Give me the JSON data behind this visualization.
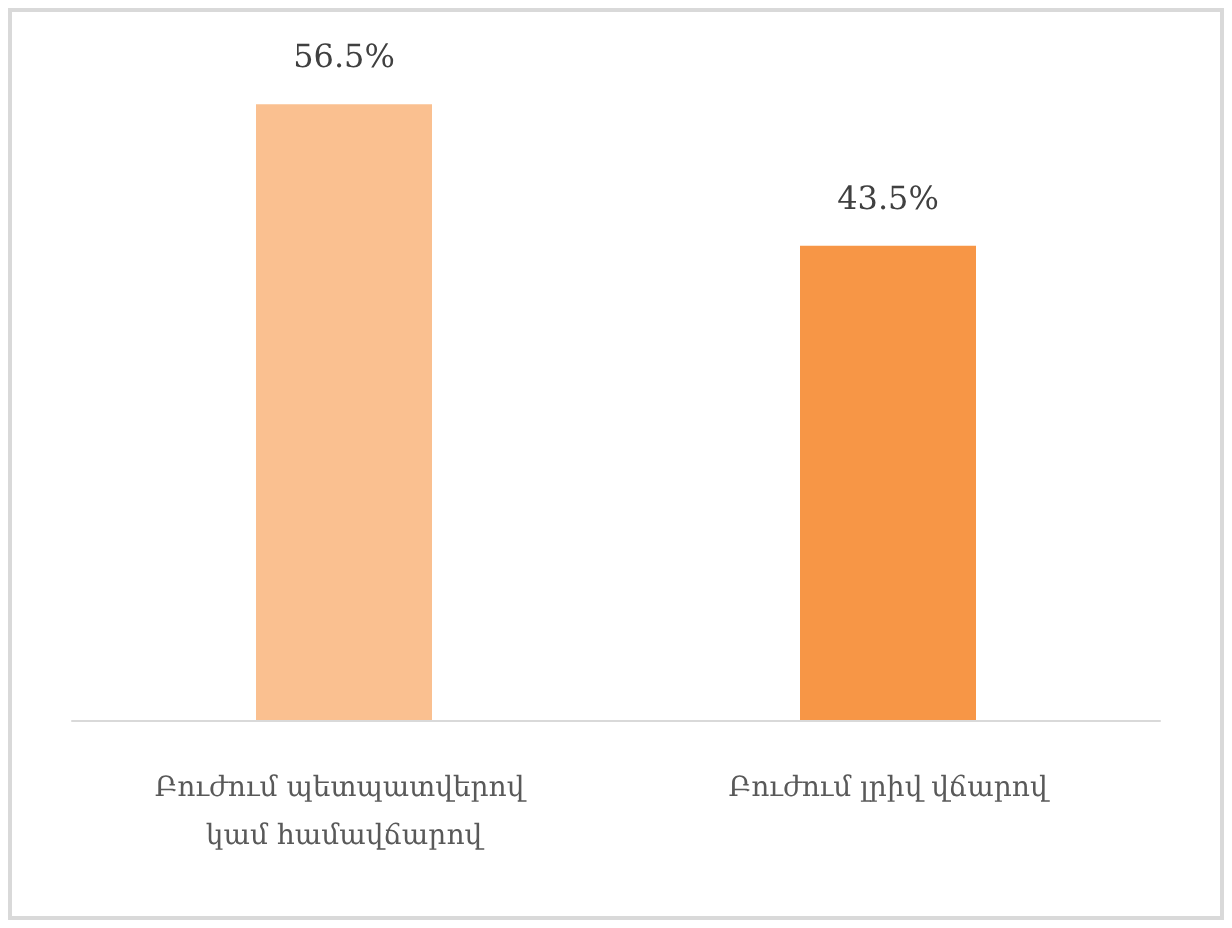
{
  "chart_data": {
    "type": "bar",
    "categories": [
      "Բուժում պետպատվերով կամ համավճարով",
      "Բուժում լրիվ վճարով"
    ],
    "values": [
      56.5,
      43.5
    ],
    "colors": [
      "#fac090",
      "#f79646"
    ],
    "value_labels": [
      "56.5%",
      "43.5%"
    ]
  }
}
